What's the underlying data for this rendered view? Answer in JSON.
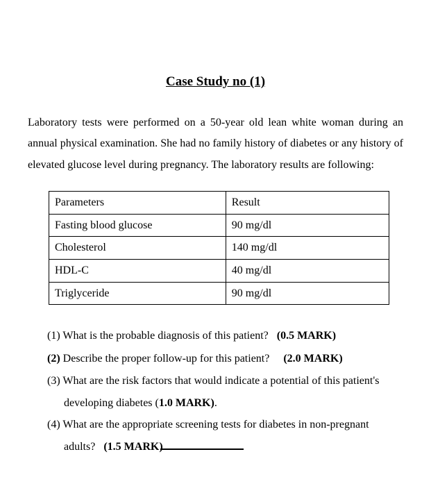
{
  "title": "Case Study no (1)",
  "intro": "Laboratory tests were performed on a 50-year old lean white woman during an annual physical examination. She had no family history of diabetes or any history of elevated glucose level during pregnancy. The laboratory results are following:",
  "table": {
    "header": {
      "col1": "Parameters",
      "col2": "Result"
    },
    "rows": [
      {
        "col1": "Fasting blood glucose",
        "col2": "90 mg/dl"
      },
      {
        "col1": "Cholesterol",
        "col2": "140 mg/dl"
      },
      {
        "col1": "HDL-C",
        "col2": "40 mg/dl"
      },
      {
        "col1": "Triglyceride",
        "col2": "90 mg/dl"
      }
    ]
  },
  "questions": {
    "q1": {
      "num": "(1)",
      "text": " What is the probable diagnosis of this patient?",
      "mark": "(0.5 MARK)"
    },
    "q2": {
      "num": "(2)",
      "text": " Describe the proper follow-up for this patient?",
      "mark": "(2.0 MARK)"
    },
    "q3": {
      "num": "(3)",
      "text": " What are the risk factors that would indicate a potential of this patient's",
      "line2": "developing diabetes (",
      "mark": "1.0 MARK)",
      "after": "."
    },
    "q4": {
      "num": "(4)",
      "text": " What are the appropriate screening tests for diabetes in non-pregnant",
      "line2": "adults?",
      "mark": "(1.5 MARK)"
    }
  }
}
